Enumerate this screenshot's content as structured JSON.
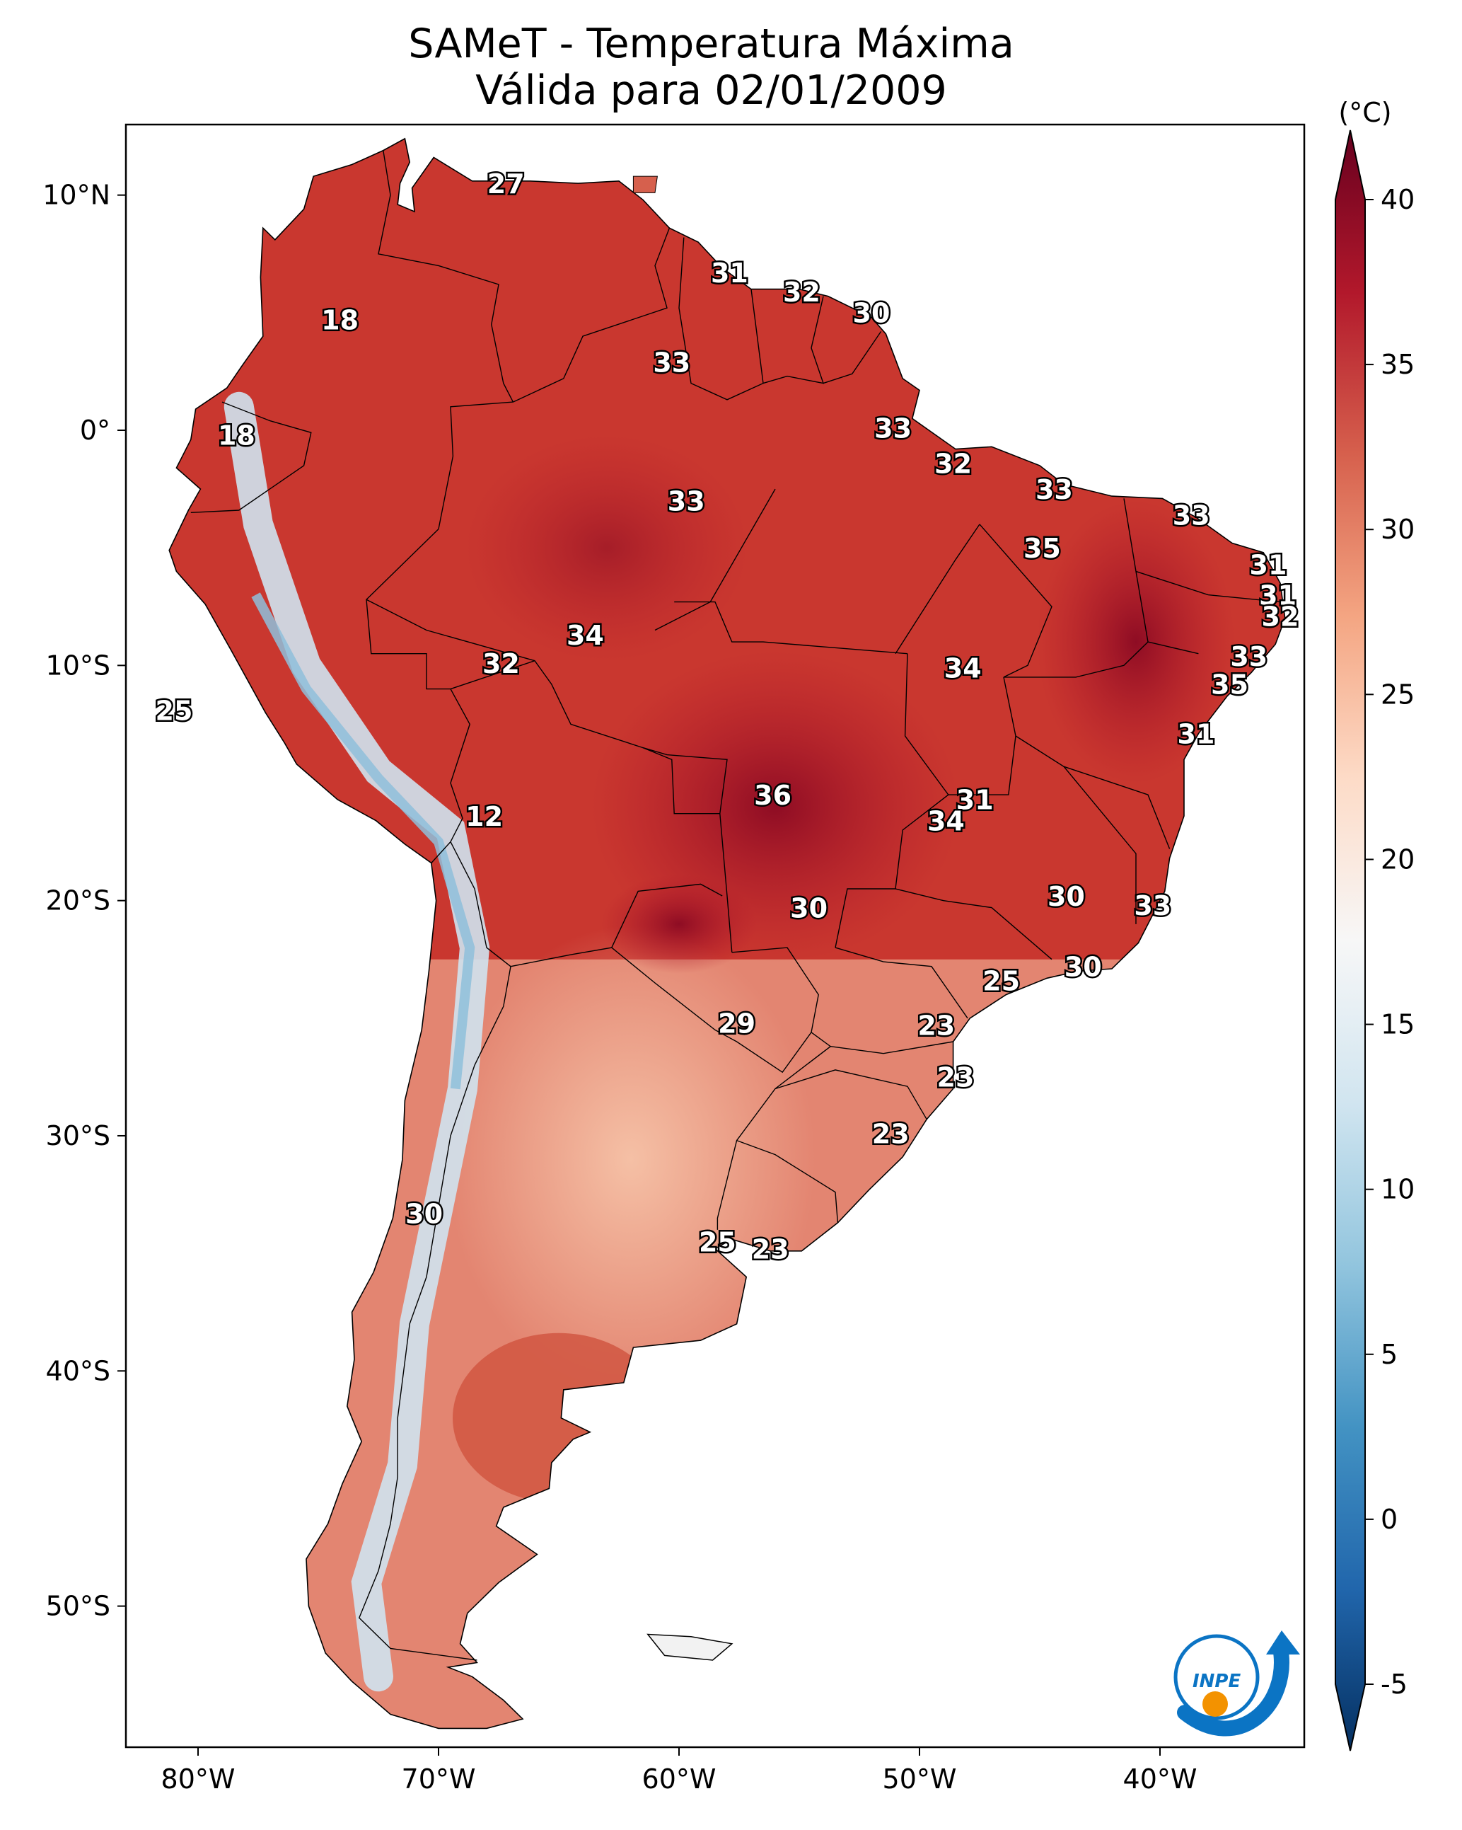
{
  "title": {
    "line1": "SAMeT - Temperatura Máxima",
    "line2": "Válida para 02/01/2009"
  },
  "map": {
    "lon_range": [
      -83,
      -34
    ],
    "lat_range": [
      -56,
      13
    ],
    "x_ticks": [
      {
        "lon": -80,
        "label": "80°W"
      },
      {
        "lon": -70,
        "label": "70°W"
      },
      {
        "lon": -60,
        "label": "60°W"
      },
      {
        "lon": -50,
        "label": "50°W"
      },
      {
        "lon": -40,
        "label": "40°W"
      }
    ],
    "y_ticks": [
      {
        "lat": 10,
        "label": "10°N"
      },
      {
        "lat": 0,
        "label": "0°"
      },
      {
        "lat": -10,
        "label": "10°S"
      },
      {
        "lat": -20,
        "label": "20°S"
      },
      {
        "lat": -30,
        "label": "30°S"
      },
      {
        "lat": -40,
        "label": "40°S"
      },
      {
        "lat": -50,
        "label": "50°S"
      }
    ],
    "station_labels": [
      {
        "lon": -67.2,
        "lat": 10.4,
        "value": "27"
      },
      {
        "lon": -57.9,
        "lat": 6.6,
        "value": "31"
      },
      {
        "lon": -54.9,
        "lat": 5.8,
        "value": "32"
      },
      {
        "lon": -52.0,
        "lat": 4.9,
        "value": "30"
      },
      {
        "lon": -74.1,
        "lat": 4.6,
        "value": "18"
      },
      {
        "lon": -60.3,
        "lat": 2.8,
        "value": "33"
      },
      {
        "lon": -51.1,
        "lat": 0.0,
        "value": "33"
      },
      {
        "lon": -78.4,
        "lat": -0.3,
        "value": "18"
      },
      {
        "lon": -48.6,
        "lat": -1.5,
        "value": "32"
      },
      {
        "lon": -59.7,
        "lat": -3.1,
        "value": "33"
      },
      {
        "lon": -44.4,
        "lat": -2.6,
        "value": "33"
      },
      {
        "lon": -38.7,
        "lat": -3.7,
        "value": "33"
      },
      {
        "lon": -44.9,
        "lat": -5.1,
        "value": "35"
      },
      {
        "lon": -35.5,
        "lat": -5.8,
        "value": "31"
      },
      {
        "lon": -35.1,
        "lat": -7.1,
        "value": "31"
      },
      {
        "lon": -35.0,
        "lat": -8.0,
        "value": "32"
      },
      {
        "lon": -63.9,
        "lat": -8.8,
        "value": "34"
      },
      {
        "lon": -67.4,
        "lat": -10.0,
        "value": "32"
      },
      {
        "lon": -48.2,
        "lat": -10.2,
        "value": "34"
      },
      {
        "lon": -36.3,
        "lat": -9.7,
        "value": "33"
      },
      {
        "lon": -37.1,
        "lat": -10.9,
        "value": "35"
      },
      {
        "lon": -81.0,
        "lat": -12.0,
        "value": "25"
      },
      {
        "lon": -38.5,
        "lat": -13.0,
        "value": "31"
      },
      {
        "lon": -56.1,
        "lat": -15.6,
        "value": "36"
      },
      {
        "lon": -47.7,
        "lat": -15.8,
        "value": "31"
      },
      {
        "lon": -48.9,
        "lat": -16.7,
        "value": "34"
      },
      {
        "lon": -68.1,
        "lat": -16.5,
        "value": "12"
      },
      {
        "lon": -43.9,
        "lat": -19.9,
        "value": "30"
      },
      {
        "lon": -40.3,
        "lat": -20.3,
        "value": "33"
      },
      {
        "lon": -54.6,
        "lat": -20.4,
        "value": "30"
      },
      {
        "lon": -43.2,
        "lat": -22.9,
        "value": "30"
      },
      {
        "lon": -46.6,
        "lat": -23.5,
        "value": "25"
      },
      {
        "lon": -57.6,
        "lat": -25.3,
        "value": "29"
      },
      {
        "lon": -49.3,
        "lat": -25.4,
        "value": "23"
      },
      {
        "lon": -48.5,
        "lat": -27.6,
        "value": "23"
      },
      {
        "lon": -51.2,
        "lat": -30.0,
        "value": "23"
      },
      {
        "lon": -70.6,
        "lat": -33.4,
        "value": "30"
      },
      {
        "lon": -58.4,
        "lat": -34.6,
        "value": "25"
      },
      {
        "lon": -56.2,
        "lat": -34.9,
        "value": "23"
      }
    ]
  },
  "colorbar": {
    "unit_label": "(°C)",
    "min": -5,
    "max": 40,
    "ticks": [
      {
        "value": 40,
        "label": "40"
      },
      {
        "value": 35,
        "label": "35"
      },
      {
        "value": 30,
        "label": "30"
      },
      {
        "value": 25,
        "label": "25"
      },
      {
        "value": 20,
        "label": "20"
      },
      {
        "value": 15,
        "label": "15"
      },
      {
        "value": 10,
        "label": "10"
      },
      {
        "value": 5,
        "label": "5"
      },
      {
        "value": 0,
        "label": "0"
      },
      {
        "value": -5,
        "label": "-5"
      }
    ],
    "colors": [
      "#053061",
      "#2166ac",
      "#4393c3",
      "#92c5de",
      "#d1e5f0",
      "#f7f7f7",
      "#fddbc7",
      "#f4a582",
      "#d6604d",
      "#b2182b",
      "#67001f"
    ]
  },
  "logo": {
    "text": "INPE",
    "blue": "#0b74c4",
    "orange": "#f39200"
  }
}
